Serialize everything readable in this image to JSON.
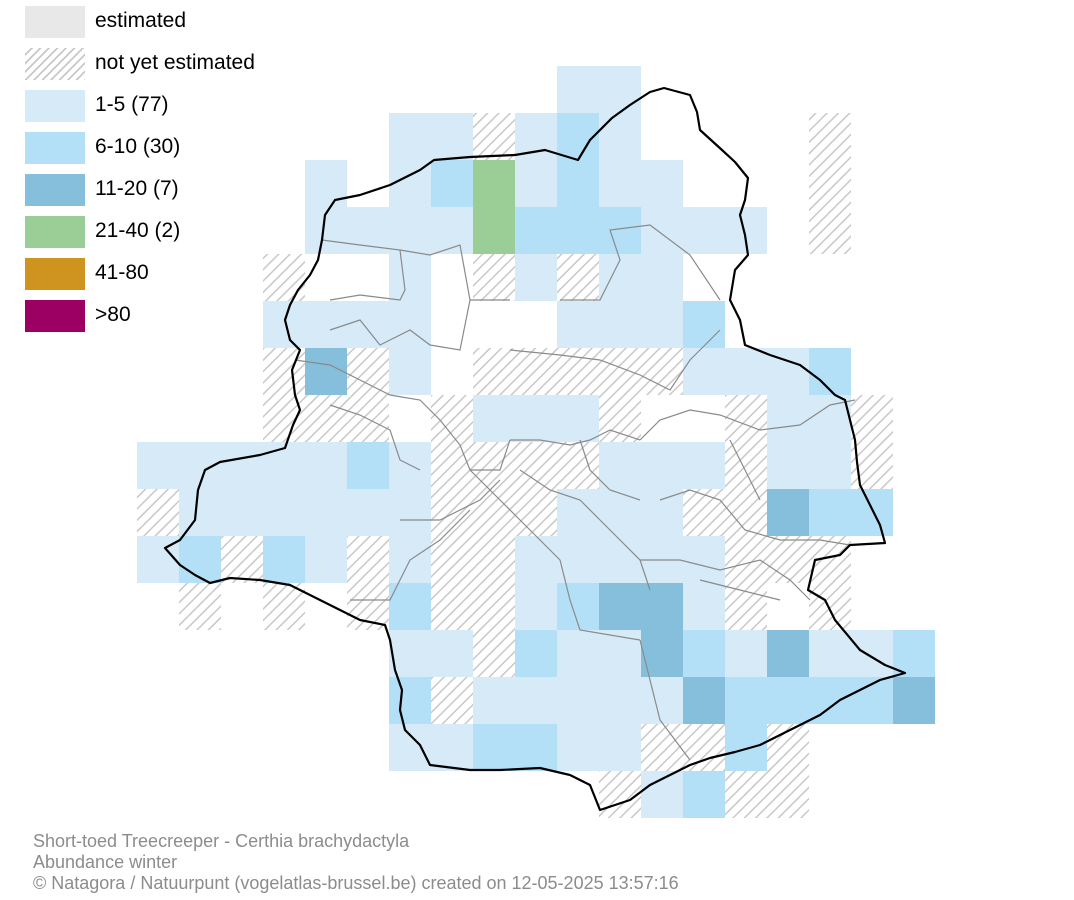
{
  "legend": {
    "items": [
      {
        "label": "estimated",
        "color": "#e8e8e8",
        "pattern": "solid"
      },
      {
        "label": "not yet estimated",
        "color": "#c8c8c8",
        "pattern": "hatched"
      },
      {
        "label": "1-5 (77)",
        "color": "#d6eaf8",
        "pattern": "solid"
      },
      {
        "label": "6-10 (30)",
        "color": "#b3e0f7",
        "pattern": "solid"
      },
      {
        "label": "11-20 (7)",
        "color": "#86bfdc",
        "pattern": "solid"
      },
      {
        "label": "21-40 (2)",
        "color": "#9bcd97",
        "pattern": "solid"
      },
      {
        "label": "41-80",
        "color": "#cf9420",
        "pattern": "solid"
      },
      {
        "label": ">80",
        "color": "#9c0062",
        "pattern": "solid"
      }
    ]
  },
  "footer": {
    "species": "Short-toed Treecreeper - Certhia brachydactyla",
    "subtitle": "Abundance winter",
    "credit": "© Natagora / Natuurpunt (vogelatlas-brussel.be) created on 12-05-2025 13:57:16"
  },
  "colors": {
    "border": "#000000",
    "municipality_lines": "#8a8a8a"
  }
}
